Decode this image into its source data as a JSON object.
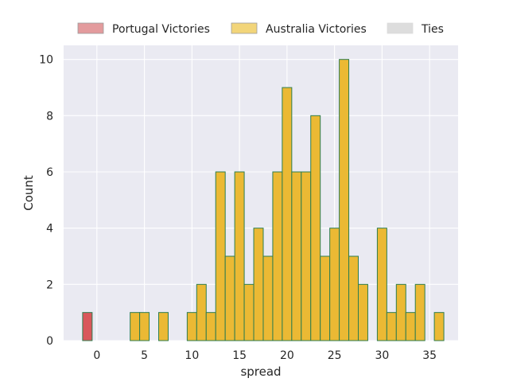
{
  "chart_data": {
    "type": "bar",
    "xlabel": "spread",
    "ylabel": "Count",
    "xlim": [
      -3.5,
      38
    ],
    "ylim": [
      0,
      10.5
    ],
    "xticks": [
      0,
      5,
      10,
      15,
      20,
      25,
      30,
      35
    ],
    "yticks": [
      0,
      2,
      4,
      6,
      8,
      10
    ],
    "bin_width": 1,
    "grid": true,
    "legend_position": "top-center",
    "background": "#EAEAF2",
    "series": [
      {
        "name": "Portugal Victories",
        "fill": "#D9575B",
        "legend_fill": "#E39B9D",
        "edge": "#2E7D4F",
        "bins": [
          {
            "x": -1,
            "count": 1
          }
        ]
      },
      {
        "name": "Australia Victories",
        "fill": "#EBB934",
        "legend_fill": "#F2D57A",
        "edge": "#2E7D4F",
        "bins": [
          {
            "x": 4,
            "count": 1
          },
          {
            "x": 5,
            "count": 1
          },
          {
            "x": 7,
            "count": 1
          },
          {
            "x": 10,
            "count": 1
          },
          {
            "x": 11,
            "count": 2
          },
          {
            "x": 12,
            "count": 1
          },
          {
            "x": 13,
            "count": 6
          },
          {
            "x": 14,
            "count": 3
          },
          {
            "x": 15,
            "count": 6
          },
          {
            "x": 16,
            "count": 2
          },
          {
            "x": 17,
            "count": 4
          },
          {
            "x": 18,
            "count": 3
          },
          {
            "x": 19,
            "count": 6
          },
          {
            "x": 20,
            "count": 9
          },
          {
            "x": 21,
            "count": 6
          },
          {
            "x": 22,
            "count": 6
          },
          {
            "x": 23,
            "count": 8
          },
          {
            "x": 24,
            "count": 3
          },
          {
            "x": 25,
            "count": 4
          },
          {
            "x": 26,
            "count": 10
          },
          {
            "x": 27,
            "count": 3
          },
          {
            "x": 28,
            "count": 2
          },
          {
            "x": 30,
            "count": 4
          },
          {
            "x": 31,
            "count": 1
          },
          {
            "x": 32,
            "count": 2
          },
          {
            "x": 33,
            "count": 1
          },
          {
            "x": 34,
            "count": 2
          },
          {
            "x": 36,
            "count": 1
          }
        ]
      },
      {
        "name": "Ties",
        "fill": "#DDDDDD",
        "legend_fill": "#DDDDDD",
        "edge": "#DDDDDD",
        "bins": []
      }
    ]
  }
}
